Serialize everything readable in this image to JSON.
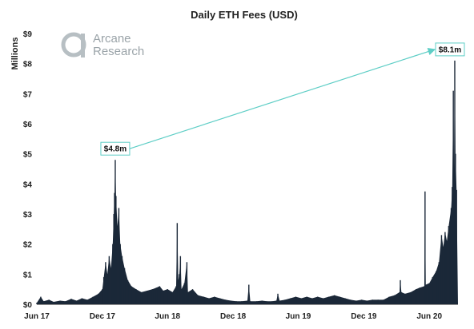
{
  "logo": {
    "line1": "Arcane",
    "line2": "Research"
  },
  "chart_data": {
    "type": "area",
    "title": "Daily ETH Fees (USD)",
    "ylabel": "Millions",
    "xlabel": "",
    "ylim": [
      0,
      9
    ],
    "y_ticks": [
      0,
      1,
      2,
      3,
      4,
      5,
      6,
      7,
      8,
      9
    ],
    "y_tick_labels": [
      "$0",
      "$1",
      "$2",
      "$3",
      "$4",
      "$5",
      "$6",
      "$7",
      "$8",
      "$9"
    ],
    "x_tick_labels": [
      "Jun 17",
      "Dec 17",
      "Jun 18",
      "Dec 18",
      "Jun 19",
      "Dec 19",
      "Jun 20"
    ],
    "x_tick_dates": [
      "2017-06-01",
      "2017-12-01",
      "2018-06-01",
      "2018-12-01",
      "2019-06-01",
      "2019-12-01",
      "2020-06-01"
    ],
    "x_range": [
      "2017-06-01",
      "2020-08-20"
    ],
    "grid": false,
    "fill_color": "#1b2838",
    "series": [
      {
        "name": "",
        "points": [
          [
            "2017-06-01",
            0.05
          ],
          [
            "2017-06-12",
            0.25
          ],
          [
            "2017-06-20",
            0.1
          ],
          [
            "2017-07-05",
            0.15
          ],
          [
            "2017-07-18",
            0.08
          ],
          [
            "2017-08-05",
            0.12
          ],
          [
            "2017-08-20",
            0.1
          ],
          [
            "2017-09-05",
            0.18
          ],
          [
            "2017-09-20",
            0.12
          ],
          [
            "2017-10-05",
            0.2
          ],
          [
            "2017-10-20",
            0.15
          ],
          [
            "2017-11-05",
            0.25
          ],
          [
            "2017-11-20",
            0.35
          ],
          [
            "2017-12-01",
            0.5
          ],
          [
            "2017-12-05",
            0.9
          ],
          [
            "2017-12-10",
            1.4
          ],
          [
            "2017-12-15",
            1.0
          ],
          [
            "2017-12-20",
            1.6
          ],
          [
            "2017-12-25",
            1.2
          ],
          [
            "2017-12-30",
            2.0
          ],
          [
            "2018-01-02",
            3.0
          ],
          [
            "2018-01-04",
            3.7
          ],
          [
            "2018-01-06",
            4.8
          ],
          [
            "2018-01-08",
            3.6
          ],
          [
            "2018-01-12",
            2.6
          ],
          [
            "2018-01-16",
            3.2
          ],
          [
            "2018-01-20",
            2.0
          ],
          [
            "2018-01-25",
            1.6
          ],
          [
            "2018-02-01",
            1.2
          ],
          [
            "2018-02-10",
            0.8
          ],
          [
            "2018-02-20",
            0.6
          ],
          [
            "2018-03-05",
            0.5
          ],
          [
            "2018-03-20",
            0.4
          ],
          [
            "2018-04-05",
            0.45
          ],
          [
            "2018-04-20",
            0.5
          ],
          [
            "2018-05-01",
            0.55
          ],
          [
            "2018-05-10",
            0.6
          ],
          [
            "2018-05-20",
            0.45
          ],
          [
            "2018-06-01",
            0.5
          ],
          [
            "2018-06-15",
            0.4
          ],
          [
            "2018-06-25",
            0.6
          ],
          [
            "2018-06-28",
            2.7
          ],
          [
            "2018-07-01",
            0.8
          ],
          [
            "2018-07-04",
            1.0
          ],
          [
            "2018-07-07",
            1.6
          ],
          [
            "2018-07-10",
            0.5
          ],
          [
            "2018-07-18",
            0.7
          ],
          [
            "2018-07-25",
            1.4
          ],
          [
            "2018-07-28",
            0.4
          ],
          [
            "2018-08-10",
            0.5
          ],
          [
            "2018-08-25",
            0.3
          ],
          [
            "2018-09-10",
            0.25
          ],
          [
            "2018-09-25",
            0.2
          ],
          [
            "2018-10-10",
            0.25
          ],
          [
            "2018-10-25",
            0.2
          ],
          [
            "2018-11-10",
            0.15
          ],
          [
            "2018-11-25",
            0.12
          ],
          [
            "2018-12-10",
            0.1
          ],
          [
            "2018-12-25",
            0.1
          ],
          [
            "2019-01-10",
            0.12
          ],
          [
            "2019-01-14",
            0.65
          ],
          [
            "2019-01-18",
            0.1
          ],
          [
            "2019-02-05",
            0.1
          ],
          [
            "2019-02-20",
            0.12
          ],
          [
            "2019-03-05",
            0.1
          ],
          [
            "2019-03-20",
            0.1
          ],
          [
            "2019-04-01",
            0.12
          ],
          [
            "2019-04-05",
            0.35
          ],
          [
            "2019-04-10",
            0.12
          ],
          [
            "2019-04-25",
            0.15
          ],
          [
            "2019-05-10",
            0.2
          ],
          [
            "2019-05-25",
            0.25
          ],
          [
            "2019-06-10",
            0.2
          ],
          [
            "2019-06-25",
            0.25
          ],
          [
            "2019-07-10",
            0.2
          ],
          [
            "2019-07-25",
            0.25
          ],
          [
            "2019-08-10",
            0.2
          ],
          [
            "2019-08-25",
            0.25
          ],
          [
            "2019-09-10",
            0.3
          ],
          [
            "2019-09-25",
            0.25
          ],
          [
            "2019-10-10",
            0.2
          ],
          [
            "2019-10-25",
            0.15
          ],
          [
            "2019-11-10",
            0.12
          ],
          [
            "2019-11-25",
            0.15
          ],
          [
            "2019-12-10",
            0.12
          ],
          [
            "2019-12-25",
            0.15
          ],
          [
            "2020-01-10",
            0.15
          ],
          [
            "2020-01-25",
            0.15
          ],
          [
            "2020-02-10",
            0.25
          ],
          [
            "2020-02-25",
            0.3
          ],
          [
            "2020-03-10",
            0.4
          ],
          [
            "2020-03-12",
            0.8
          ],
          [
            "2020-03-15",
            0.4
          ],
          [
            "2020-03-25",
            0.35
          ],
          [
            "2020-04-10",
            0.4
          ],
          [
            "2020-04-25",
            0.5
          ],
          [
            "2020-05-05",
            0.55
          ],
          [
            "2020-05-18",
            0.6
          ],
          [
            "2020-05-20",
            3.75
          ],
          [
            "2020-05-22",
            0.65
          ],
          [
            "2020-06-01",
            0.7
          ],
          [
            "2020-06-10",
            0.9
          ],
          [
            "2020-06-20",
            1.1
          ],
          [
            "2020-06-28",
            1.4
          ],
          [
            "2020-07-05",
            2.3
          ],
          [
            "2020-07-10",
            1.9
          ],
          [
            "2020-07-15",
            2.4
          ],
          [
            "2020-07-20",
            2.1
          ],
          [
            "2020-07-25",
            2.6
          ],
          [
            "2020-08-01",
            3.2
          ],
          [
            "2020-08-04",
            3.9
          ],
          [
            "2020-08-07",
            7.1
          ],
          [
            "2020-08-09",
            4.5
          ],
          [
            "2020-08-11",
            8.1
          ],
          [
            "2020-08-13",
            5.0
          ],
          [
            "2020-08-16",
            3.8
          ],
          [
            "2020-08-20",
            0.0
          ]
        ]
      }
    ],
    "annotations": [
      {
        "label": "$4.8m",
        "date": "2018-01-06",
        "value": 4.8
      },
      {
        "label": "$8.1m",
        "date": "2020-08-11",
        "value": 8.1
      }
    ],
    "arrow_color": "#5ecec6"
  }
}
